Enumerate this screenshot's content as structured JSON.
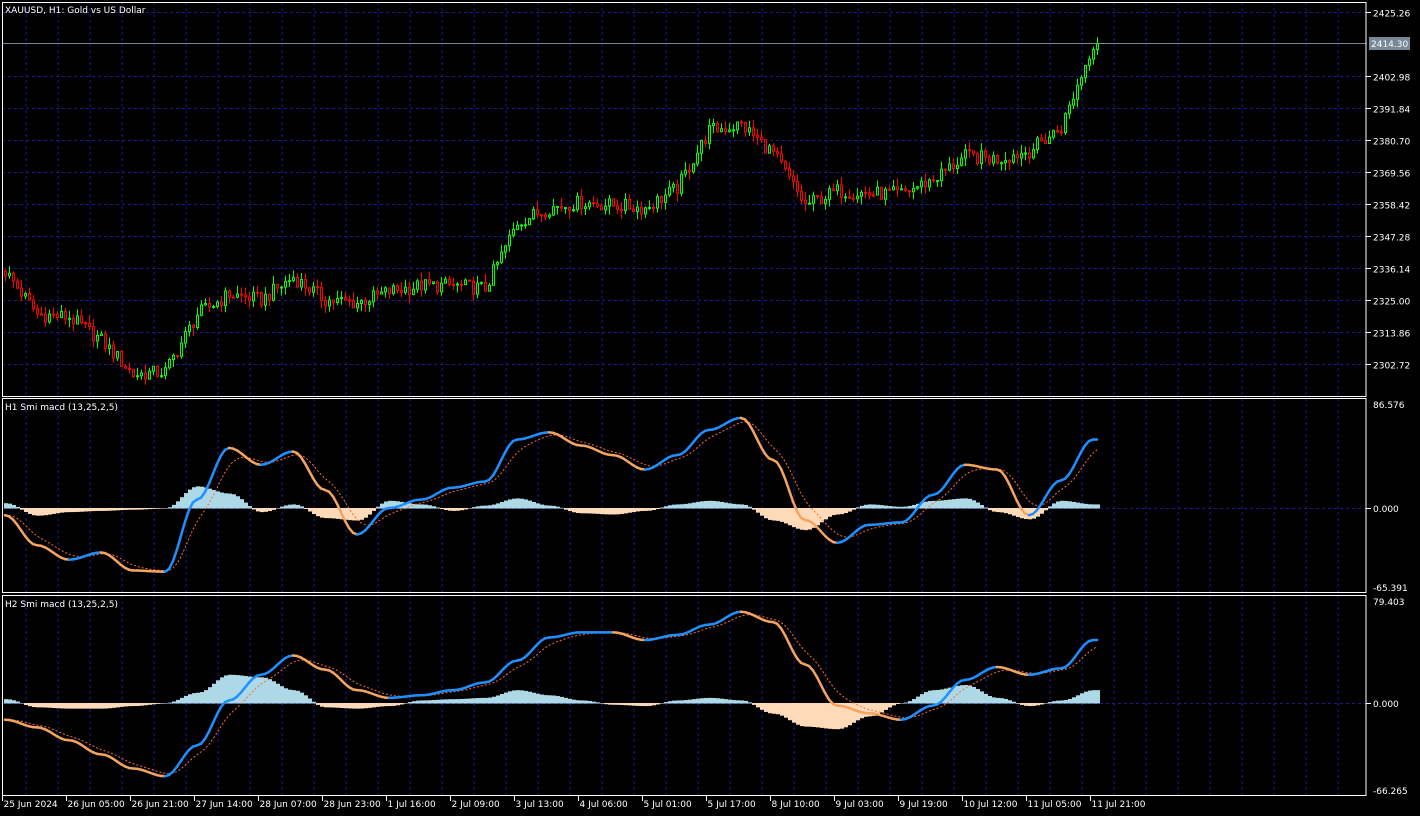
{
  "chart_data": [
    {
      "type": "candlestick",
      "title": "XAUUSD, H1:  Gold vs US Dollar",
      "symbol": "XAUUSD",
      "timeframe": "H1",
      "description": "Gold vs US Dollar",
      "current_price": "2414.30",
      "y_ticks": [
        "2425.26",
        "2414.30",
        "2402.98",
        "2391.84",
        "2380.70",
        "2369.56",
        "2358.42",
        "2347.28",
        "2336.14",
        "2325.00",
        "2313.86",
        "2302.72"
      ],
      "ylim": [
        2297.14,
        2430.83
      ],
      "bar_count": 274,
      "close_samples_every_8_bars": [
        2335,
        2320,
        2319,
        2311,
        2299,
        2300,
        2320,
        2327,
        2325,
        2333,
        2325,
        2324,
        2328,
        2330,
        2330,
        2329,
        2352,
        2357,
        2359,
        2358,
        2357,
        2364,
        2384,
        2386,
        2376,
        2358,
        2363,
        2362,
        2362,
        2367,
        2375,
        2374,
        2377,
        2385,
        2414.3
      ],
      "colors": {
        "up": "#00ff00",
        "down": "#ff0000",
        "grid": "#1a1a8c",
        "price_line": "#778899"
      },
      "grid": true
    },
    {
      "type": "line",
      "title": "H1 Smi macd (13,25,2,5)",
      "y_ticks": [
        "86.576",
        "0.000",
        "-65.391"
      ],
      "ylim": [
        -65.391,
        86.576
      ],
      "main": [
        -6,
        -31,
        -43,
        -37,
        -52,
        -53,
        7,
        50,
        36,
        47,
        15,
        -22,
        0,
        7,
        17,
        22,
        57,
        63,
        52,
        44,
        32,
        44,
        65,
        75,
        40,
        -10,
        -29,
        -14,
        -12,
        11,
        36,
        32,
        -6,
        23,
        57
      ],
      "histogram": [
        4,
        -6,
        -3,
        -2,
        -1,
        0,
        18,
        12,
        -3,
        3,
        -8,
        -10,
        6,
        3,
        -2,
        2,
        8,
        2,
        -4,
        -5,
        -2,
        3,
        6,
        3,
        -10,
        -18,
        -5,
        3,
        1,
        6,
        8,
        -3,
        -9,
        6,
        3
      ],
      "colors": {
        "rising": "#1e90ff",
        "falling": "#f4a460",
        "signal": "#ff6a3d",
        "hist_pos": "#add8e6",
        "hist_neg": "#ffdab9"
      }
    },
    {
      "type": "line",
      "title": "H2 Smi macd (13,25,2,5)",
      "y_ticks": [
        "79.403",
        "0.000",
        "-66.265"
      ],
      "ylim": [
        -66.265,
        79.403
      ],
      "main": [
        -13,
        -19,
        -29,
        -40,
        -51,
        -57,
        -33,
        2,
        22,
        37,
        26,
        10,
        4,
        6,
        10,
        16,
        33,
        51,
        55,
        55,
        49,
        53,
        61,
        71,
        63,
        30,
        -2,
        -8,
        -13,
        -2,
        18,
        28,
        22,
        27,
        49
      ],
      "histogram": [
        3,
        -3,
        -4,
        -4,
        -2,
        0,
        8,
        22,
        20,
        10,
        -3,
        -4,
        -2,
        2,
        3,
        4,
        10,
        6,
        2,
        -1,
        -2,
        2,
        4,
        2,
        -8,
        -18,
        -20,
        -10,
        0,
        10,
        14,
        4,
        -2,
        2,
        10
      ],
      "colors": {
        "rising": "#1e90ff",
        "falling": "#f4a460",
        "signal": "#ff6a3d",
        "hist_pos": "#add8e6",
        "hist_neg": "#ffdab9"
      }
    }
  ],
  "x_ticks": [
    "25 Jun 2024",
    "26 Jun 05:00",
    "26 Jun 21:00",
    "27 Jun 14:00",
    "28 Jun 07:00",
    "28 Jun 23:00",
    "1 Jul 16:00",
    "2 Jul 09:00",
    "3 Jul 13:00",
    "4 Jul 06:00",
    "5 Jul 01:00",
    "5 Jul 17:00",
    "8 Jul 10:00",
    "9 Jul 03:00",
    "9 Jul 19:00",
    "10 Jul 12:00",
    "11 Jul 05:00",
    "11 Jul 21:00"
  ]
}
